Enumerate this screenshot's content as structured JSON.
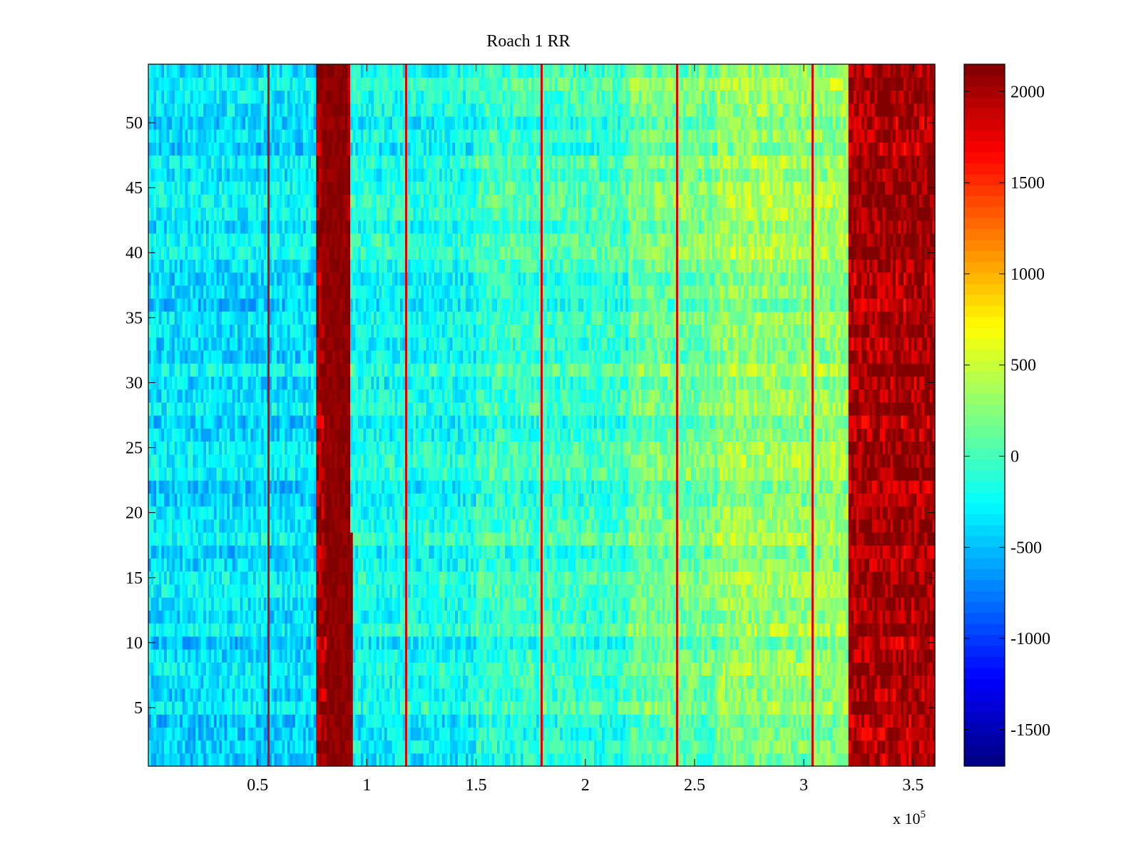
{
  "chart_data": {
    "type": "heatmap",
    "title": "Roach 1 RR",
    "xlabel": "",
    "ylabel": "",
    "x_multiplier_label": {
      "base": "x 10",
      "exponent": "5"
    },
    "xlim": [
      0,
      3.6
    ],
    "x_unit_scale": 100000,
    "ylim": [
      0.5,
      54.5
    ],
    "n_rows": 54,
    "x_ticks": [
      0.5,
      1,
      1.5,
      2,
      2.5,
      3,
      3.5
    ],
    "x_tick_labels": [
      "0.5",
      "1",
      "1.5",
      "2",
      "2.5",
      "3",
      "3.5"
    ],
    "y_ticks": [
      5,
      10,
      15,
      20,
      25,
      30,
      35,
      40,
      45,
      50
    ],
    "y_tick_labels": [
      "5",
      "10",
      "15",
      "20",
      "25",
      "30",
      "35",
      "40",
      "45",
      "50"
    ],
    "colorbar": {
      "colormap": "jet",
      "clim": [
        -1700,
        2150
      ],
      "ticks": [
        -1500,
        -1000,
        -500,
        0,
        500,
        1000,
        1500,
        2000
      ],
      "tick_labels": [
        "-1500",
        "-1000",
        "-500",
        "0",
        "500",
        "1000",
        "1500",
        "2000"
      ]
    },
    "grid": false,
    "approx_level_profile": [
      {
        "x_start": 0.0,
        "x_end": 0.77,
        "value": -350
      },
      {
        "x_start": 0.77,
        "x_end": 0.92,
        "value": 1900
      },
      {
        "x_start": 0.92,
        "x_end": 1.5,
        "value": -200
      },
      {
        "x_start": 1.5,
        "x_end": 2.2,
        "value": -50
      },
      {
        "x_start": 2.2,
        "x_end": 2.6,
        "value": 150
      },
      {
        "x_start": 2.6,
        "x_end": 3.2,
        "value": 300
      },
      {
        "x_start": 3.2,
        "x_end": 3.6,
        "value": 1900
      }
    ],
    "hot_band": {
      "x_center_bottom": 0.88,
      "x_center_top": 0.85,
      "value": 2100
    },
    "vertical_lines_x": [
      0.55,
      1.18,
      1.8,
      2.42,
      3.04
    ],
    "vertical_line_value": 1800
  }
}
